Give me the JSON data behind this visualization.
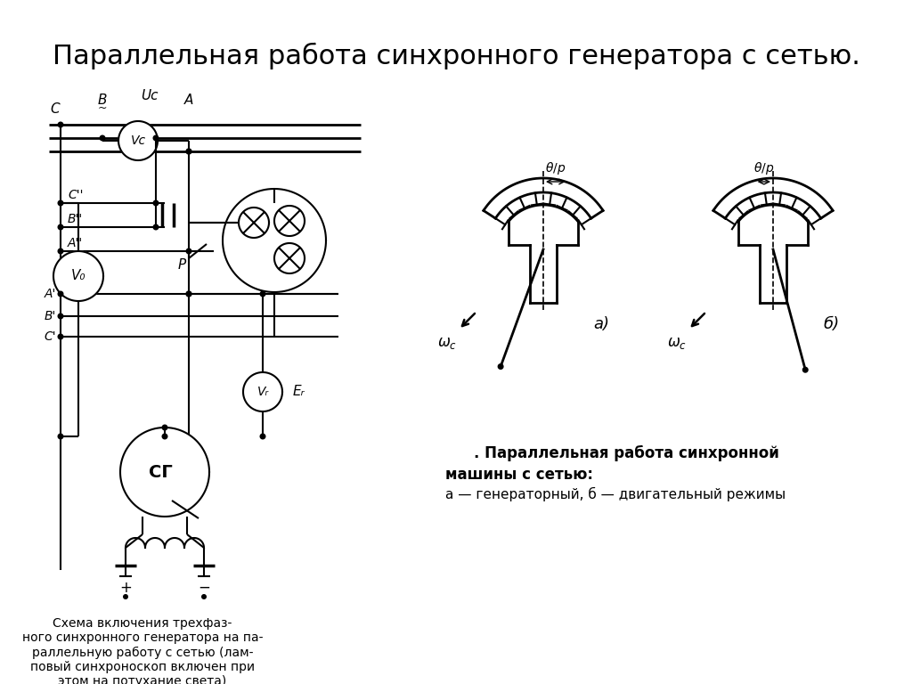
{
  "title": "Параллельная работа синхронного генератора с сетью.",
  "title_fontsize": 22,
  "bg_color": "#ffffff",
  "left_caption": "Схема включения трехфаз-\nного синхронного генератора на па-\nраллельную работу с сетью (лам-\nповый синхроноскоп включен при\nэтом на потухание света)",
  "right_cap1": "Параллельная работа синхронной",
  "right_cap2": "машины с сетью:",
  "right_cap3": "а — генераторный, б — двигательный режимы",
  "label_a": "а)",
  "label_b": "б)"
}
